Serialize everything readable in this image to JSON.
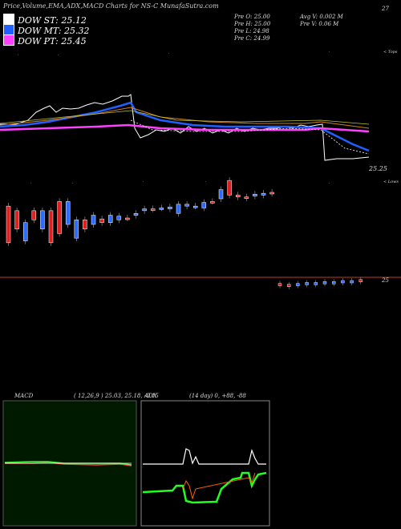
{
  "title": "Price,Volume,EMA,ADX,MACD Charts for NS-C MunafaSutra.com",
  "legend": [
    {
      "label": "DOW ST: 25.12",
      "color": "#ffffff"
    },
    {
      "label": "DOW MT: 25.32",
      "color": "#2060ff"
    },
    {
      "label": "DOW PT: 25.45",
      "color": "#ff40ff"
    }
  ],
  "stats_left": [
    "Pre  O: 25.00",
    "Pre  H: 25.00",
    "Pre  L: 24.98",
    "Pre  C: 24.99"
  ],
  "stats_right": [
    "Avg V: 0.002  M",
    "Pre  V: 0.06  M"
  ],
  "corner_value": "27",
  "last_price_label": "25.25",
  "lower_price_label": "25",
  "tops_label": "< Tops",
  "lows_label": "< Lows",
  "macd_panel": {
    "label": "MACD",
    "params": "( 12,26,9 ) 25.03, 25.18, -0.15"
  },
  "adx_panel": {
    "label": "ADX",
    "params": "(14  day) 0, +88, -88"
  },
  "colors": {
    "ema_short": "#ffffff",
    "ema_mid": "#2060ff",
    "ema_long": "#ff40ff",
    "up": "#2b6cff",
    "down": "#e02020",
    "macd_bg": "#001a00",
    "adx_bg": "#000000"
  },
  "chart_data": [
    {
      "type": "candlestick",
      "title": "Price,Volume,EMA,ADX,MACD Charts for NS-C MunafaSutra.com",
      "candles": [
        {
          "o": 25.1,
          "c": 24.7,
          "dir": "down"
        },
        {
          "o": 24.85,
          "c": 25.05,
          "dir": "down"
        },
        {
          "o": 24.72,
          "c": 24.92,
          "dir": "up"
        },
        {
          "o": 24.95,
          "c": 25.05,
          "dir": "down"
        },
        {
          "o": 24.85,
          "c": 25.05,
          "dir": "up"
        },
        {
          "o": 25.05,
          "c": 24.7,
          "dir": "down"
        },
        {
          "o": 24.8,
          "c": 25.15,
          "dir": "down"
        },
        {
          "o": 24.9,
          "c": 25.15,
          "dir": "up"
        },
        {
          "o": 24.75,
          "c": 24.95,
          "dir": "up"
        },
        {
          "o": 24.95,
          "c": 24.85,
          "dir": "down"
        },
        {
          "o": 24.9,
          "c": 25.0,
          "dir": "up"
        },
        {
          "o": 24.96,
          "c": 24.92,
          "dir": "down"
        },
        {
          "o": 24.92,
          "c": 25.0,
          "dir": "up"
        },
        {
          "o": 24.95,
          "c": 24.99,
          "dir": "up"
        },
        {
          "o": 24.97,
          "c": 24.97,
          "dir": "down"
        },
        {
          "o": 25.0,
          "c": 25.02,
          "dir": "up"
        },
        {
          "o": 25.05,
          "c": 25.07,
          "dir": "up"
        },
        {
          "o": 25.07,
          "c": 25.07,
          "dir": "down"
        },
        {
          "o": 25.08,
          "c": 25.08,
          "dir": "up"
        },
        {
          "o": 25.07,
          "c": 25.09,
          "dir": "up"
        },
        {
          "o": 25.12,
          "c": 25.02,
          "dir": "up"
        },
        {
          "o": 25.12,
          "c": 25.1,
          "dir": "up"
        },
        {
          "o": 25.1,
          "c": 25.1,
          "dir": "up"
        },
        {
          "o": 25.14,
          "c": 25.08,
          "dir": "up"
        },
        {
          "o": 25.15,
          "c": 25.15,
          "dir": "down"
        },
        {
          "o": 25.28,
          "c": 25.18,
          "dir": "up"
        },
        {
          "o": 25.38,
          "c": 25.22,
          "dir": "down"
        },
        {
          "o": 25.22,
          "c": 25.2,
          "dir": "down"
        },
        {
          "o": 25.2,
          "c": 25.19,
          "dir": "down"
        },
        {
          "o": 25.21,
          "c": 25.23,
          "dir": "up"
        },
        {
          "o": 25.22,
          "c": 25.24,
          "dir": "up"
        },
        {
          "o": 25.24,
          "c": 25.25,
          "dir": "down"
        }
      ],
      "post_break_candles": [
        {
          "o": 25.0,
          "c": 24.99,
          "dir": "down"
        },
        {
          "o": 24.99,
          "c": 25.0,
          "dir": "down"
        },
        {
          "o": 25.0,
          "c": 25.01,
          "dir": "up"
        },
        {
          "o": 25.01,
          "c": 25.0,
          "dir": "up"
        },
        {
          "o": 25.01,
          "c": 25.02,
          "dir": "up"
        },
        {
          "o": 25.02,
          "c": 25.01,
          "dir": "up"
        },
        {
          "o": 25.02,
          "c": 25.03,
          "dir": "up"
        },
        {
          "o": 25.03,
          "c": 25.03,
          "dir": "up"
        },
        {
          "o": 25.03,
          "c": 25.04,
          "dir": "up"
        },
        {
          "o": 25.04,
          "c": 25.04,
          "dir": "down"
        }
      ],
      "series": [
        {
          "name": "DOW ST",
          "last": 25.12
        },
        {
          "name": "DOW MT",
          "last": 25.32
        },
        {
          "name": "DOW PT",
          "last": 25.45
        }
      ]
    },
    {
      "type": "line",
      "title": "MACD",
      "params": "( 12,26,9 ) 25.03, 25.18, -0.15",
      "values": [
        25.03,
        25.18,
        -0.15
      ]
    },
    {
      "type": "line",
      "title": "ADX",
      "params": "(14  day) 0, +88, -88",
      "values": [
        0,
        88,
        -88
      ]
    }
  ]
}
